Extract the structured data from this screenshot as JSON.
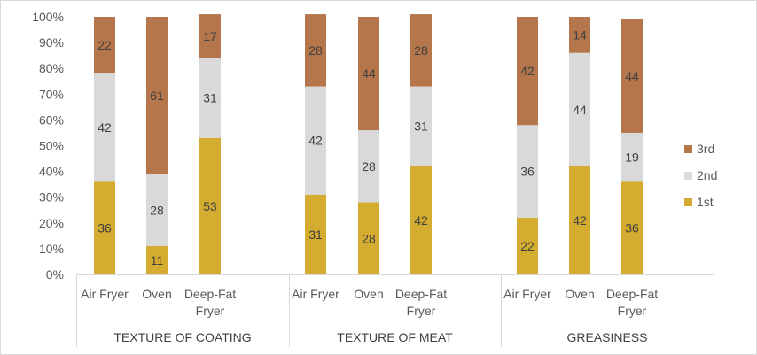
{
  "chart_data": {
    "type": "bar",
    "stacked": true,
    "percent_stacked": true,
    "groups": [
      {
        "name": "TEXTURE OF COATING",
        "categories": [
          [
            "Air Fryer"
          ],
          [
            "Oven"
          ],
          [
            "Deep-Fat",
            "Fryer"
          ]
        ]
      },
      {
        "name": "TEXTURE OF MEAT",
        "categories": [
          [
            "Air Fryer"
          ],
          [
            "Oven"
          ],
          [
            "Deep-Fat",
            "Fryer"
          ]
        ]
      },
      {
        "name": "GREASINESS",
        "categories": [
          [
            "Air Fryer"
          ],
          [
            "Oven"
          ],
          [
            "Deep-Fat",
            "Fryer"
          ]
        ]
      }
    ],
    "series": [
      {
        "name": "1st",
        "color": "#D4AC2F",
        "values": [
          36,
          11,
          53,
          31,
          28,
          42,
          22,
          42,
          36
        ]
      },
      {
        "name": "2nd",
        "color": "#D9D9D9",
        "values": [
          42,
          28,
          31,
          42,
          28,
          31,
          36,
          44,
          19
        ]
      },
      {
        "name": "3rd",
        "color": "#B4764A",
        "values": [
          22,
          61,
          17,
          28,
          44,
          28,
          42,
          14,
          44
        ]
      }
    ],
    "yaxis": {
      "min": 0,
      "max": 100,
      "step": 10,
      "tick_labels": [
        "0%",
        "10%",
        "20%",
        "30%",
        "40%",
        "50%",
        "60%",
        "70%",
        "80%",
        "90%",
        "100%"
      ]
    },
    "legend": {
      "position": "right",
      "order": [
        "3rd",
        "2nd",
        "1st"
      ]
    },
    "grid": false,
    "title": "",
    "xlabel": "",
    "ylabel": ""
  }
}
